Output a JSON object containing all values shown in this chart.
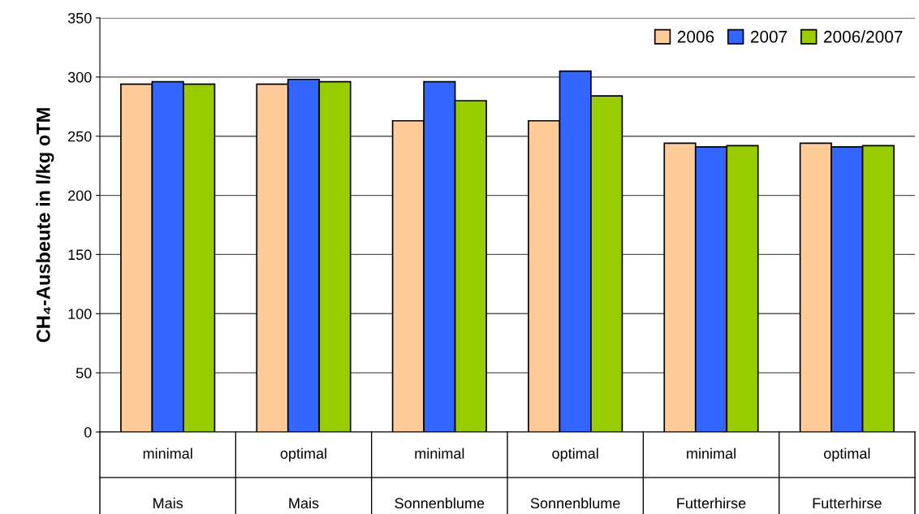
{
  "chart_data": {
    "type": "bar",
    "ylabel": "CH₄-Ausbeute in l/kg oTM",
    "categories": [
      "minimal\nMais",
      "optimal\nMais",
      "minimal\nSonnenblume",
      "optimal\nSonnenblume",
      "minimal\nFutterhirse",
      "optimal\nFutterhirse"
    ],
    "series": [
      {
        "name": "2006",
        "color": "#ffcc99",
        "values": [
          294,
          294,
          263,
          263,
          244,
          244
        ]
      },
      {
        "name": "2007",
        "color": "#3366ff",
        "values": [
          296,
          298,
          296,
          305,
          241,
          241
        ]
      },
      {
        "name": "2006/2007",
        "color": "#99cc00",
        "values": [
          294,
          296,
          280,
          284,
          242,
          242
        ]
      }
    ],
    "ylim": [
      0,
      350
    ],
    "yticks": [
      0,
      50,
      100,
      150,
      200,
      250,
      300,
      350
    ],
    "grid": "y",
    "legend": "top right"
  }
}
